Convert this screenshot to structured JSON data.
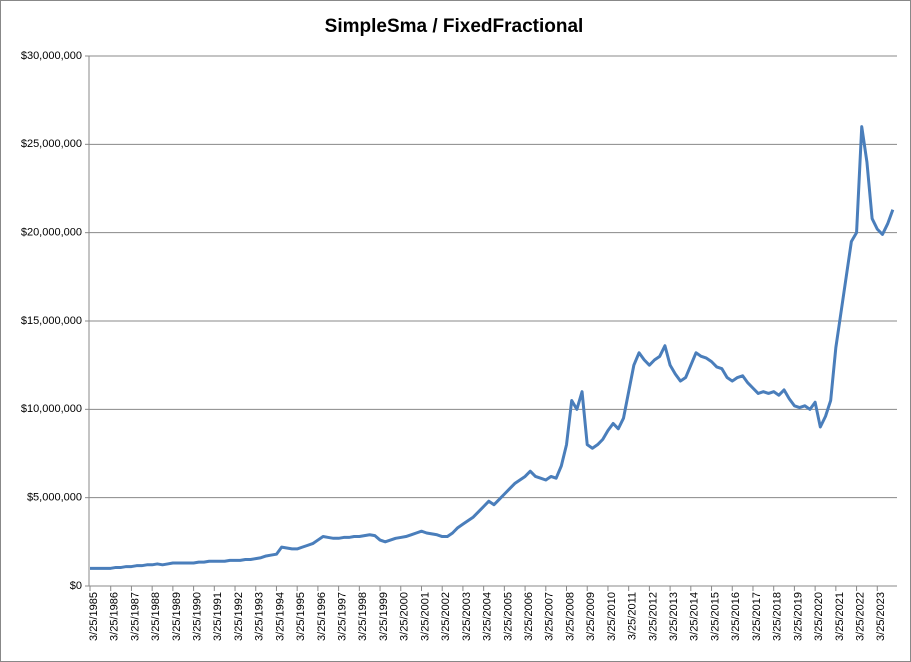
{
  "chart_data": {
    "type": "line",
    "title": "SimpleSma / FixedFractional",
    "categories": [
      "3/25/1985",
      null,
      null,
      null,
      "3/25/1986",
      null,
      null,
      null,
      "3/25/1987",
      null,
      null,
      null,
      "3/25/1988",
      null,
      null,
      null,
      "3/25/1989",
      null,
      null,
      null,
      "3/25/1990",
      null,
      null,
      null,
      "3/25/1991",
      null,
      null,
      null,
      "3/25/1992",
      null,
      null,
      null,
      "3/25/1993",
      null,
      null,
      null,
      "3/25/1994",
      null,
      null,
      null,
      "3/25/1995",
      null,
      null,
      null,
      "3/25/1996",
      null,
      null,
      null,
      "3/25/1997",
      null,
      null,
      null,
      "3/25/1998",
      null,
      null,
      null,
      "3/25/1999",
      null,
      null,
      null,
      "3/25/2000",
      null,
      null,
      null,
      "3/25/2001",
      null,
      null,
      null,
      "3/25/2002",
      null,
      null,
      null,
      "3/25/2003",
      null,
      null,
      null,
      "3/25/2004",
      null,
      null,
      null,
      "3/25/2005",
      null,
      null,
      null,
      "3/25/2006",
      null,
      null,
      null,
      "3/25/2007",
      null,
      null,
      null,
      "3/25/2008",
      null,
      null,
      null,
      "3/25/2009",
      null,
      null,
      null,
      "3/25/2010",
      null,
      null,
      null,
      "3/25/2011",
      null,
      null,
      null,
      "3/25/2012",
      null,
      null,
      null,
      "3/25/2013",
      null,
      null,
      null,
      "3/25/2014",
      null,
      null,
      null,
      "3/25/2015",
      null,
      null,
      null,
      "3/25/2016",
      null,
      null,
      null,
      "3/25/2017",
      null,
      null,
      null,
      "3/25/2018",
      null,
      null,
      null,
      "3/25/2019",
      null,
      null,
      null,
      "3/25/2020",
      null,
      null,
      null,
      "3/25/2021",
      null,
      null,
      null,
      "3/25/2022",
      null,
      null,
      null,
      "3/25/2023",
      null,
      null,
      null
    ],
    "series": [
      {
        "color": "#4a7ebb",
        "values": [
          1000000,
          1000000,
          1000000,
          1000000,
          1000000,
          1050000,
          1050000,
          1100000,
          1100000,
          1150000,
          1150000,
          1200000,
          1200000,
          1250000,
          1200000,
          1250000,
          1300000,
          1300000,
          1300000,
          1300000,
          1300000,
          1350000,
          1350000,
          1400000,
          1400000,
          1400000,
          1400000,
          1450000,
          1450000,
          1450000,
          1500000,
          1500000,
          1550000,
          1600000,
          1700000,
          1750000,
          1800000,
          2200000,
          2150000,
          2100000,
          2100000,
          2200000,
          2300000,
          2400000,
          2600000,
          2800000,
          2750000,
          2700000,
          2700000,
          2750000,
          2750000,
          2800000,
          2800000,
          2850000,
          2900000,
          2850000,
          2600000,
          2500000,
          2600000,
          2700000,
          2750000,
          2800000,
          2900000,
          3000000,
          3100000,
          3000000,
          2950000,
          2900000,
          2800000,
          2800000,
          3000000,
          3300000,
          3500000,
          3700000,
          3900000,
          4200000,
          4500000,
          4800000,
          4600000,
          4900000,
          5200000,
          5500000,
          5800000,
          6000000,
          6200000,
          6500000,
          6200000,
          6100000,
          6000000,
          6200000,
          6100000,
          6800000,
          8000000,
          10500000,
          10000000,
          11000000,
          8000000,
          7800000,
          8000000,
          8300000,
          8800000,
          9200000,
          8900000,
          9500000,
          11000000,
          12500000,
          13200000,
          12800000,
          12500000,
          12800000,
          13000000,
          13600000,
          12500000,
          12000000,
          11600000,
          11800000,
          12500000,
          13200000,
          13000000,
          12900000,
          12700000,
          12400000,
          12300000,
          11800000,
          11600000,
          11800000,
          11900000,
          11500000,
          11200000,
          10900000,
          11000000,
          10900000,
          11000000,
          10800000,
          11100000,
          10600000,
          10200000,
          10100000,
          10200000,
          10000000,
          10400000,
          9000000,
          9600000,
          10500000,
          13500000,
          15500000,
          17500000,
          19500000,
          20000000,
          26000000,
          24000000,
          20800000,
          20200000,
          19900000,
          20500000,
          21300000
        ]
      }
    ],
    "ylim": [
      0,
      30000000
    ],
    "yticks": [
      {
        "value": 0,
        "label": "$0"
      },
      {
        "value": 5000000,
        "label": "$5,000,000"
      },
      {
        "value": 10000000,
        "label": "$10,000,000"
      },
      {
        "value": 15000000,
        "label": "$15,000,000"
      },
      {
        "value": 20000000,
        "label": "$20,000,000"
      },
      {
        "value": 25000000,
        "label": "$25,000,000"
      },
      {
        "value": 30000000,
        "label": "$30,000,000"
      }
    ],
    "grid": true
  }
}
